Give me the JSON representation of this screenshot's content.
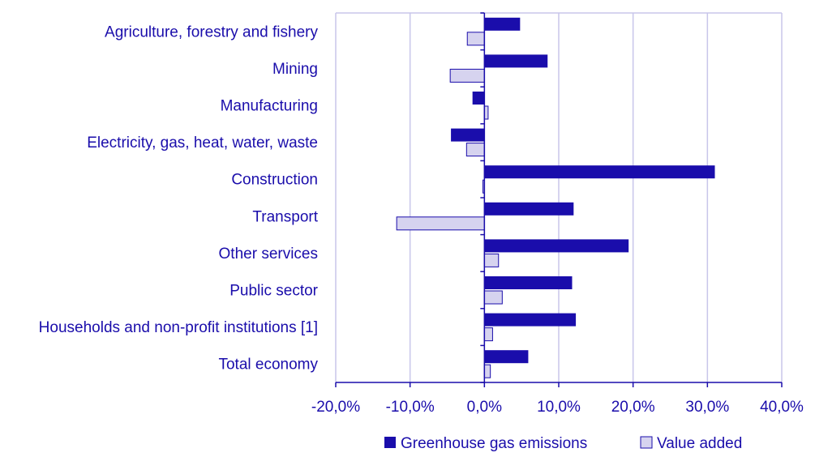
{
  "chart_data": {
    "type": "bar",
    "orientation": "horizontal",
    "title": "",
    "xlabel": "",
    "ylabel": "",
    "categories": [
      "Agriculture, forestry and fishery",
      "Mining",
      "Manufacturing",
      "Electricity, gas, heat, water, waste",
      "Construction",
      "Transport",
      "Other services",
      "Public sector",
      "Households and non-profit institutions [1]",
      "Total economy"
    ],
    "series": [
      {
        "name": "Greenhouse gas emissions",
        "color": "#1a0dab",
        "values": [
          4.8,
          8.5,
          -1.6,
          -4.5,
          31.0,
          12.0,
          19.4,
          11.8,
          12.3,
          5.9
        ]
      },
      {
        "name": "Value added",
        "color": "#d6d3ef",
        "values": [
          -2.3,
          -4.6,
          0.5,
          -2.4,
          -0.2,
          -11.8,
          1.9,
          2.4,
          1.1,
          0.8
        ]
      }
    ],
    "xlim": [
      -20,
      40
    ],
    "xticks": [
      -20,
      -10,
      0,
      10,
      20,
      30,
      40
    ],
    "xtick_labels": [
      "-20,0%",
      "-10,0%",
      "0,0%",
      "10,0%",
      "20,0%",
      "30,0%",
      "40,0%"
    ],
    "grid": true,
    "legend_position": "bottom"
  },
  "colors": {
    "label_text": "#1a0dab",
    "grid": "#c8c6ea",
    "axis": "#1a0dab",
    "bar_outline": "#1a0dab"
  }
}
